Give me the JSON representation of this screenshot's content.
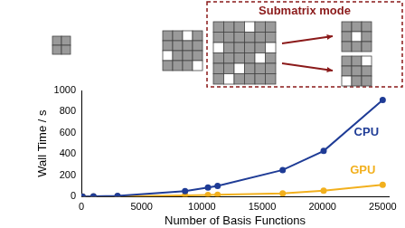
{
  "chart_data": {
    "type": "line",
    "x_label": "Number of Basis Functions",
    "y_label": "Wall Time / s",
    "x": [
      100,
      1000,
      3000,
      8600,
      10500,
      11300,
      16700,
      20100,
      25000
    ],
    "series": [
      {
        "name": "CPU",
        "color": "#1f3c96",
        "marker": "circle",
        "values": [
          0,
          1,
          5,
          50,
          85,
          100,
          250,
          430,
          910
        ]
      },
      {
        "name": "GPU",
        "color": "#f2b01e",
        "marker": "circle",
        "values": [
          0,
          0,
          1,
          10,
          14,
          16,
          30,
          55,
          110
        ]
      }
    ],
    "xlim": [
      0,
      25500
    ],
    "xticks": [
      0,
      5000,
      10000,
      15000,
      20000,
      25000
    ],
    "ylim": [
      0,
      1000
    ],
    "yticks": [
      0,
      200,
      400,
      600,
      800,
      1000
    ],
    "grid": false
  },
  "diagram": {
    "label": "Submatrix mode"
  }
}
